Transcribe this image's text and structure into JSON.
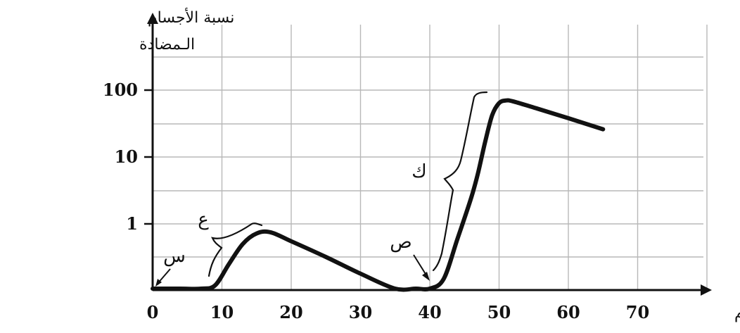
{
  "chart_data": {
    "type": "line",
    "xlabel": "الأيام",
    "ylabel": [
      "نسبة الأجسام",
      "الـمضادة"
    ],
    "x_ticks": [
      0,
      10,
      20,
      30,
      40,
      50,
      60,
      70
    ],
    "y_ticks": [
      "1",
      "10",
      "100"
    ],
    "y_scale": "log",
    "xlim": [
      0,
      80
    ],
    "grid": true,
    "series": [
      {
        "x": [
          0,
          4,
          7,
          9,
          11,
          13,
          15,
          17,
          20,
          25,
          30,
          35,
          38,
          40,
          42,
          44,
          46,
          47,
          48,
          49,
          50,
          51,
          52,
          55,
          60,
          65
        ],
        "y": [
          0.05,
          0.052,
          0.07,
          0.12,
          0.25,
          0.5,
          0.72,
          0.75,
          0.55,
          0.32,
          0.18,
          0.1,
          0.08,
          0.085,
          0.15,
          0.6,
          2.5,
          6,
          17,
          42,
          64,
          70,
          68,
          55,
          38,
          26
        ]
      }
    ],
    "annotations": [
      {
        "label": "س",
        "x": 0
      },
      {
        "label": "ع",
        "x": 12
      },
      {
        "label": "ص",
        "x": 40
      },
      {
        "label": "ك",
        "x": 45
      }
    ]
  }
}
